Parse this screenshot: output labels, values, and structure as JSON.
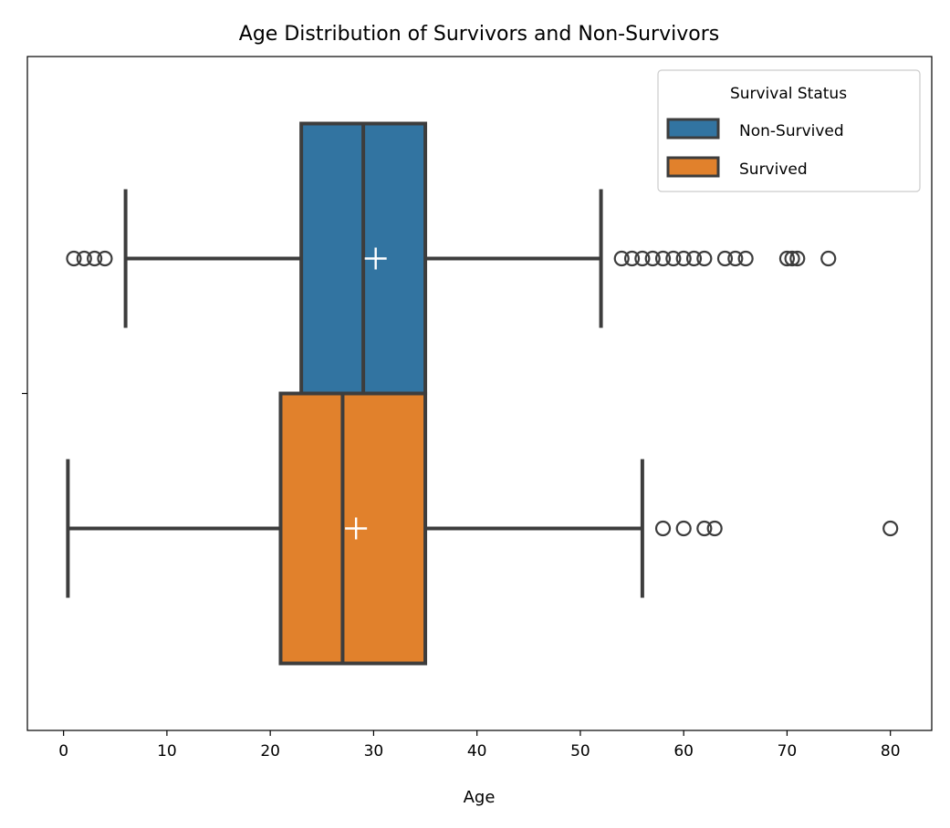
{
  "chart_data": {
    "type": "boxplot",
    "orientation": "horizontal",
    "title": "Age Distribution of Survivors and Non-Survivors",
    "xlabel": "Age",
    "ylabel": "",
    "xlim": [
      -3.5,
      84
    ],
    "xticks": [
      0,
      10,
      20,
      30,
      40,
      50,
      60,
      70,
      80
    ],
    "grid": false,
    "legend": {
      "title": "Survival Status",
      "position": "top-right",
      "entries": [
        "Non-Survived",
        "Survived"
      ]
    },
    "series": [
      {
        "name": "Non-Survived",
        "color": "#3274a1",
        "whisker_low": 6,
        "q1": 23,
        "median": 29,
        "q3": 35,
        "whisker_high": 52,
        "mean": 30.2,
        "outliers": [
          1,
          2,
          3,
          4,
          54,
          55,
          56,
          57,
          58,
          59,
          60,
          61,
          62,
          64,
          65,
          66,
          70,
          70.5,
          71,
          74
        ]
      },
      {
        "name": "Survived",
        "color": "#e1812c",
        "whisker_low": 0.42,
        "q1": 21,
        "median": 27,
        "q3": 35,
        "whisker_high": 56,
        "mean": 28.3,
        "outliers": [
          58,
          60,
          62,
          63,
          80
        ]
      }
    ]
  }
}
